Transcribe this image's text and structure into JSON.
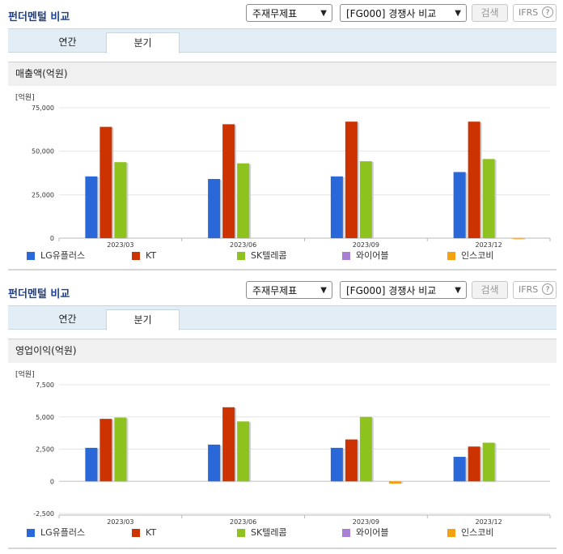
{
  "header": {
    "title": "펀더멘털 비교",
    "select_1": "주재무제표",
    "select_2": "[FG000] 경쟁사 비교",
    "search_label": "검색",
    "ifrs_label": "IFRS",
    "help_label": "?"
  },
  "tabs": [
    "연간",
    "분기"
  ],
  "active_tab": "분기",
  "colors": {
    "LG유플러스": "#2a67d9",
    "KT": "#cc3300",
    "SK텔레콤": "#8dc21f",
    "와이어블": "#a97fd6",
    "인스코비": "#f5a00f"
  },
  "legend": [
    "LG유플러스",
    "KT",
    "SK텔레콤",
    "와이어블",
    "인스코비"
  ],
  "chart_data": [
    {
      "type": "bar",
      "title": "매출액(억원)",
      "unit_label": "[억원]",
      "categories": [
        "2023/03",
        "2023/06",
        "2023/09",
        "2023/12"
      ],
      "yticks": [
        "75,000",
        "50,000",
        "25,000",
        "0"
      ],
      "ylim": [
        0,
        75000
      ],
      "series": [
        {
          "name": "LG유플러스",
          "values": [
            35500,
            34000,
            35500,
            38000
          ]
        },
        {
          "name": "KT",
          "values": [
            64000,
            65500,
            67000,
            67000
          ]
        },
        {
          "name": "SK텔레콤",
          "values": [
            43700,
            43000,
            44200,
            45500
          ]
        },
        {
          "name": "와이어블",
          "values": [
            0,
            0,
            0,
            0
          ]
        },
        {
          "name": "인스코비",
          "values": [
            0,
            0,
            0,
            150
          ]
        }
      ]
    },
    {
      "type": "bar",
      "title": "영업이익(억원)",
      "unit_label": "[억원]",
      "categories": [
        "2023/03",
        "2023/06",
        "2023/09",
        "2023/12"
      ],
      "yticks": [
        "7,500",
        "5,000",
        "2,500",
        "0",
        "-2,500"
      ],
      "ylim": [
        -2500,
        7500
      ],
      "series": [
        {
          "name": "LG유플러스",
          "values": [
            2600,
            2850,
            2600,
            1900
          ]
        },
        {
          "name": "KT",
          "values": [
            4850,
            5750,
            3250,
            2700
          ]
        },
        {
          "name": "SK텔레콤",
          "values": [
            4950,
            4650,
            5000,
            3000
          ]
        },
        {
          "name": "와이어블",
          "values": [
            0,
            0,
            0,
            0
          ]
        },
        {
          "name": "인스코비",
          "values": [
            0,
            0,
            -180,
            0
          ]
        }
      ]
    }
  ]
}
